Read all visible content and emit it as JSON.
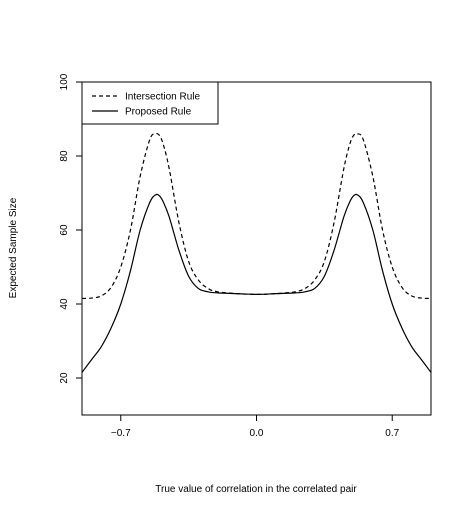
{
  "chart_data": {
    "type": "line",
    "title": "",
    "xlabel": "True value of correlation in the correlated pair",
    "ylabel": "Expected Sample Size",
    "xlim": [
      -0.9,
      0.9
    ],
    "ylim": [
      10,
      100
    ],
    "xticks": [
      -0.7,
      0.0,
      0.7
    ],
    "xtick_labels": [
      "−0.7",
      "0.0",
      "0.7"
    ],
    "yticks": [
      20,
      40,
      60,
      80,
      100
    ],
    "ytick_labels": [
      "20",
      "40",
      "60",
      "80",
      "100"
    ],
    "grid": false,
    "legend_position": "top-left",
    "x": [
      -0.9,
      -0.85,
      -0.8,
      -0.75,
      -0.7,
      -0.65,
      -0.6,
      -0.55,
      -0.52,
      -0.5,
      -0.48,
      -0.45,
      -0.4,
      -0.35,
      -0.3,
      -0.25,
      -0.2,
      -0.1,
      0.0,
      0.1,
      0.2,
      0.25,
      0.3,
      0.35,
      0.4,
      0.45,
      0.48,
      0.5,
      0.52,
      0.55,
      0.6,
      0.65,
      0.7,
      0.75,
      0.8,
      0.85,
      0.9
    ],
    "series": [
      {
        "name": "Intersection Rule",
        "style": "dashed",
        "values": [
          41.5,
          41.6,
          42.2,
          44.5,
          50.0,
          60.0,
          74.5,
          84.5,
          86.0,
          85.5,
          83.0,
          76.5,
          62.0,
          51.5,
          46.5,
          44.2,
          43.3,
          42.8,
          42.6,
          42.8,
          43.3,
          44.2,
          46.5,
          51.5,
          62.0,
          76.5,
          83.0,
          85.5,
          86.0,
          84.5,
          74.5,
          60.0,
          50.0,
          44.5,
          42.2,
          41.6,
          41.5
        ]
      },
      {
        "name": "Proposed Rule",
        "style": "solid",
        "values": [
          21.5,
          25.0,
          28.5,
          33.5,
          40.0,
          49.0,
          60.0,
          67.5,
          69.5,
          69.2,
          67.5,
          63.5,
          54.5,
          47.5,
          44.2,
          43.3,
          43.0,
          42.8,
          42.6,
          42.8,
          43.0,
          43.3,
          44.2,
          47.5,
          54.5,
          63.5,
          67.5,
          69.2,
          69.5,
          67.5,
          60.0,
          49.0,
          40.0,
          33.5,
          28.5,
          25.0,
          21.5
        ]
      }
    ]
  }
}
